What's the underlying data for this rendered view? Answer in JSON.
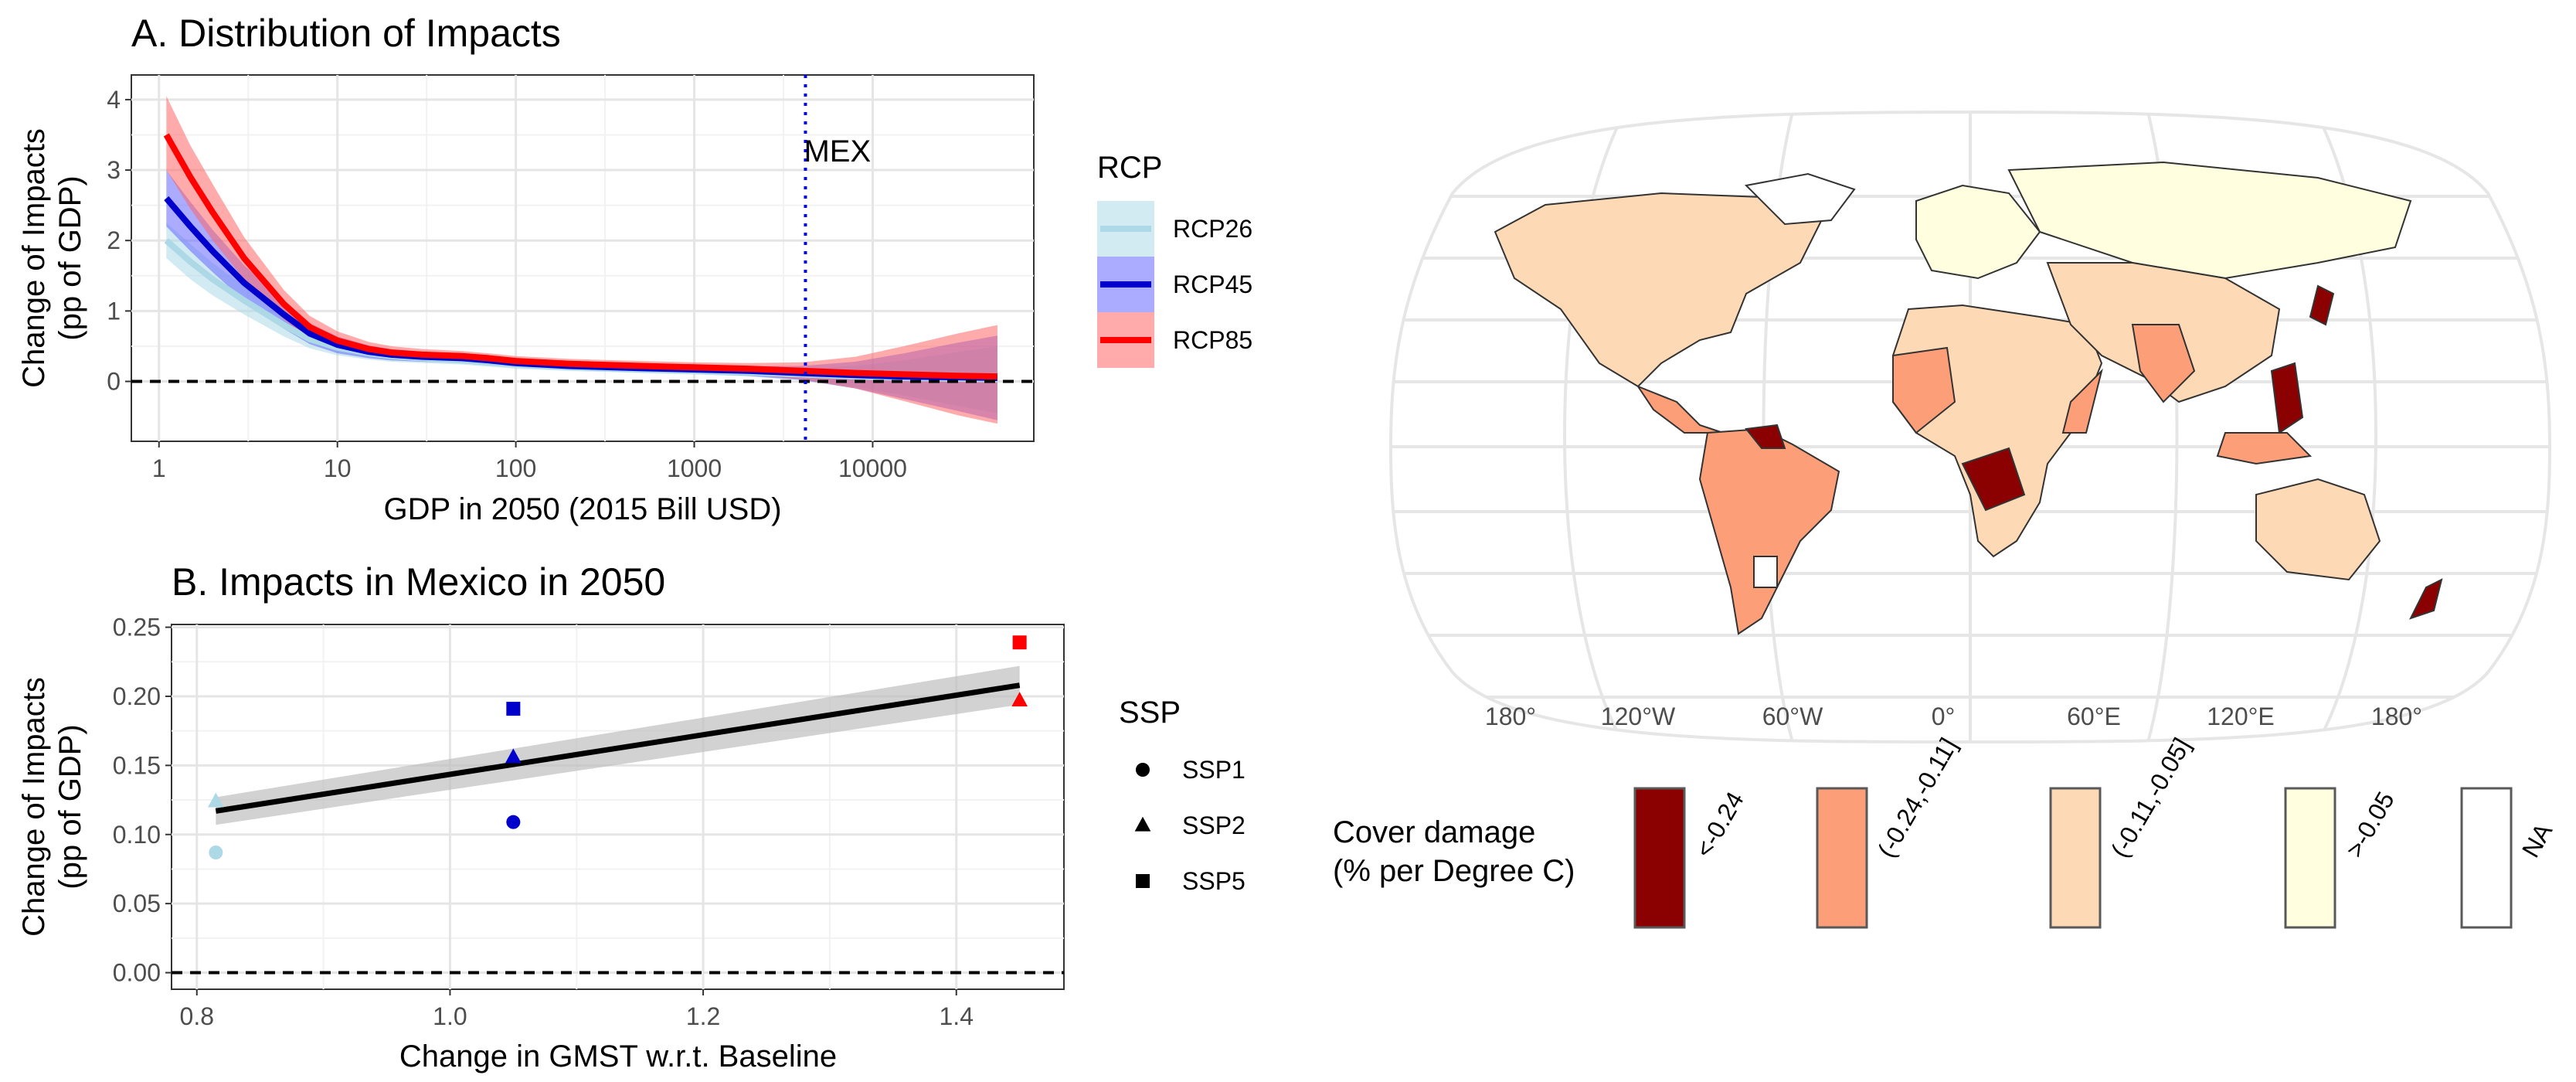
{
  "chart_data": [
    {
      "type": "line",
      "title": "A. Distribution of Impacts",
      "xlabel": "GDP in 2050 (2015 Bill USD)",
      "ylabel": [
        "Change of Impacts",
        "(pp of GDP)"
      ],
      "x_scale": "log",
      "xlim": [
        0.7,
        80000
      ],
      "ylim": [
        -0.85,
        4.35
      ],
      "x_ticks": [
        1,
        10,
        100,
        1000,
        10000
      ],
      "x_tick_labels": [
        "1",
        "10",
        "100",
        "1000",
        "10000"
      ],
      "y_ticks": [
        0,
        1,
        2,
        3,
        4
      ],
      "y_tick_labels": [
        "0",
        "1",
        "2",
        "3",
        "4"
      ],
      "grid": true,
      "hline": 0,
      "vline": {
        "x": 4200,
        "label": "MEX",
        "color": "#0000ff"
      },
      "legend_title": "RCP",
      "legend_position": "right",
      "x": [
        1.1,
        1.5,
        2,
        3,
        5,
        7,
        10,
        15,
        20,
        30,
        50,
        70,
        100,
        200,
        500,
        1000,
        2000,
        4000,
        8000,
        15000,
        30000,
        50000
      ],
      "series": [
        {
          "name": "RCP26",
          "color": "#add8e6",
          "band_color": "#add8e6",
          "values": [
            2.0,
            1.7,
            1.45,
            1.15,
            0.8,
            0.6,
            0.48,
            0.4,
            0.36,
            0.33,
            0.3,
            0.27,
            0.24,
            0.2,
            0.17,
            0.15,
            0.13,
            0.1,
            0.07,
            0.05,
            0.04,
            0.03
          ],
          "lower": [
            1.75,
            1.45,
            1.22,
            0.95,
            0.64,
            0.47,
            0.37,
            0.31,
            0.28,
            0.26,
            0.24,
            0.21,
            0.18,
            0.15,
            0.12,
            0.1,
            0.07,
            0.02,
            -0.08,
            -0.2,
            -0.35,
            -0.45
          ],
          "upper": [
            2.25,
            1.95,
            1.68,
            1.35,
            0.96,
            0.73,
            0.59,
            0.49,
            0.44,
            0.4,
            0.36,
            0.33,
            0.3,
            0.25,
            0.22,
            0.2,
            0.19,
            0.18,
            0.22,
            0.3,
            0.42,
            0.5
          ]
        },
        {
          "name": "RCP45",
          "color": "#0000cd",
          "band_color": "#6666ff",
          "values": [
            2.6,
            2.2,
            1.85,
            1.4,
            0.95,
            0.68,
            0.52,
            0.42,
            0.38,
            0.35,
            0.33,
            0.3,
            0.26,
            0.22,
            0.19,
            0.17,
            0.15,
            0.12,
            0.09,
            0.07,
            0.06,
            0.05
          ],
          "lower": [
            2.2,
            1.85,
            1.55,
            1.15,
            0.75,
            0.53,
            0.4,
            0.33,
            0.3,
            0.28,
            0.26,
            0.23,
            0.2,
            0.16,
            0.13,
            0.11,
            0.08,
            0.02,
            -0.1,
            -0.25,
            -0.42,
            -0.55
          ],
          "upper": [
            3.0,
            2.55,
            2.15,
            1.65,
            1.15,
            0.83,
            0.64,
            0.51,
            0.46,
            0.42,
            0.4,
            0.37,
            0.32,
            0.28,
            0.25,
            0.23,
            0.22,
            0.22,
            0.28,
            0.4,
            0.55,
            0.65
          ]
        },
        {
          "name": "RCP85",
          "color": "#ff0000",
          "band_color": "#ff6666",
          "values": [
            3.5,
            2.9,
            2.4,
            1.75,
            1.1,
            0.77,
            0.58,
            0.46,
            0.41,
            0.38,
            0.36,
            0.33,
            0.29,
            0.25,
            0.22,
            0.2,
            0.18,
            0.15,
            0.12,
            0.1,
            0.08,
            0.07
          ],
          "lower": [
            3.0,
            2.45,
            2.0,
            1.45,
            0.88,
            0.6,
            0.45,
            0.36,
            0.33,
            0.31,
            0.29,
            0.26,
            0.22,
            0.18,
            0.15,
            0.13,
            0.1,
            0.03,
            -0.1,
            -0.28,
            -0.48,
            -0.6
          ],
          "upper": [
            4.05,
            3.35,
            2.8,
            2.05,
            1.3,
            0.93,
            0.71,
            0.56,
            0.5,
            0.46,
            0.43,
            0.4,
            0.36,
            0.32,
            0.29,
            0.27,
            0.26,
            0.27,
            0.35,
            0.5,
            0.68,
            0.8
          ]
        }
      ]
    },
    {
      "type": "scatter",
      "title": "B. Impacts in Mexico in 2050",
      "xlabel": "Change in GMST w.r.t. Baseline",
      "ylabel": [
        "Change of Impacts",
        "(pp of GDP)"
      ],
      "xlim": [
        0.78,
        1.485
      ],
      "ylim": [
        -0.012,
        0.252
      ],
      "x_ticks": [
        0.8,
        1.0,
        1.2,
        1.4
      ],
      "x_tick_labels": [
        "0.8",
        "1.0",
        "1.2",
        "1.4"
      ],
      "y_ticks": [
        0.0,
        0.05,
        0.1,
        0.15,
        0.2,
        0.25
      ],
      "y_tick_labels": [
        "0.00",
        "0.05",
        "0.10",
        "0.15",
        "0.20",
        "0.25"
      ],
      "grid": true,
      "hline": 0,
      "legend_title": "SSP",
      "legend_position": "right",
      "legend_entries": [
        {
          "label": "SSP1",
          "shape": "circle"
        },
        {
          "label": "SSP2",
          "shape": "triangle"
        },
        {
          "label": "SSP5",
          "shape": "square"
        }
      ],
      "points": [
        {
          "x": 0.815,
          "y": 0.087,
          "shape": "circle",
          "color": "#add8e6"
        },
        {
          "x": 0.815,
          "y": 0.124,
          "shape": "triangle",
          "color": "#add8e6"
        },
        {
          "x": 1.05,
          "y": 0.109,
          "shape": "circle",
          "color": "#0000cd"
        },
        {
          "x": 1.05,
          "y": 0.156,
          "shape": "triangle",
          "color": "#0000cd"
        },
        {
          "x": 1.05,
          "y": 0.191,
          "shape": "square",
          "color": "#0000cd"
        },
        {
          "x": 1.45,
          "y": 0.197,
          "shape": "triangle",
          "color": "#ff0000"
        },
        {
          "x": 1.45,
          "y": 0.239,
          "shape": "square",
          "color": "#ff0000"
        }
      ],
      "fit": {
        "x": [
          0.815,
          1.45
        ],
        "y": [
          0.117,
          0.208
        ],
        "band_lower": [
          0.107,
          0.194
        ],
        "band_upper": [
          0.127,
          0.222
        ]
      }
    },
    {
      "type": "map",
      "x_tick_labels": [
        "180°",
        "120°W",
        "60°W",
        "0°",
        "60°E",
        "120°E",
        "180°"
      ],
      "legend_title": [
        "Cover damage",
        "(% per Degree C)"
      ],
      "legend_position": "bottom",
      "classes": [
        {
          "label": "<-0.24",
          "color": "#8b0000"
        },
        {
          "label": "(-0.24,-0.11]",
          "color": "#fc9f78"
        },
        {
          "label": "(-0.11,-0.05]",
          "color": "#fdd9b5"
        },
        {
          "label": ">-0.05",
          "color": "#ffffe0"
        },
        {
          "label": "NA",
          "color": "#ffffff"
        }
      ]
    }
  ]
}
